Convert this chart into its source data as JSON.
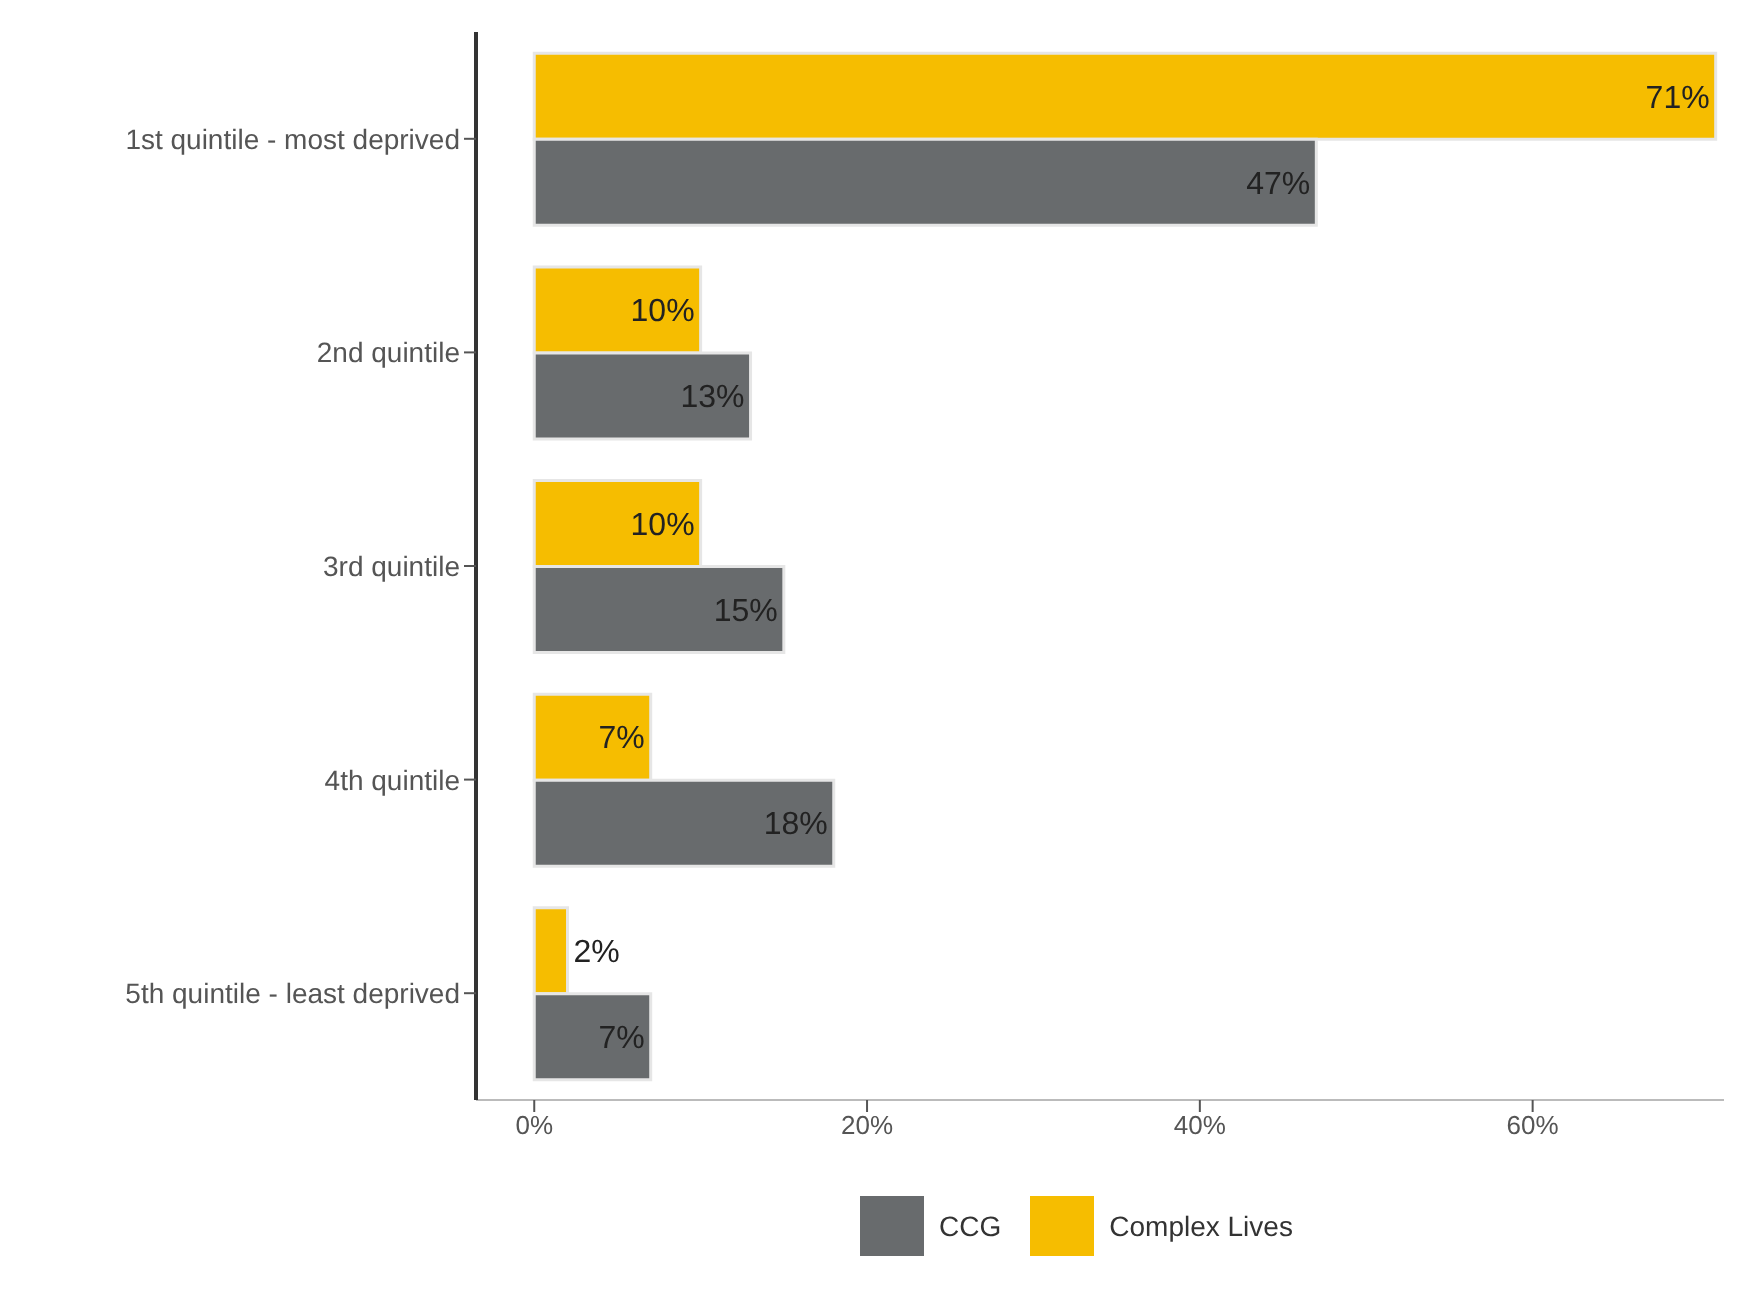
{
  "chart_data": {
    "type": "bar",
    "orientation": "horizontal",
    "categories": [
      "1st quintile - most deprived",
      "2nd quintile",
      "3rd quintile",
      "4th quintile",
      "5th quintile - least deprived"
    ],
    "series": [
      {
        "name": "CCG",
        "color": "#686b6d",
        "values": [
          47,
          13,
          15,
          18,
          7
        ],
        "value_labels": [
          "47%",
          "13%",
          "15%",
          "18%",
          "7%"
        ]
      },
      {
        "name": "Complex Lives",
        "color": "#f6bd00",
        "values": [
          71,
          10,
          10,
          7,
          2
        ],
        "value_labels": [
          "71%",
          "10%",
          "10%",
          "7%",
          "2%"
        ]
      }
    ],
    "xlim": [
      -3.5,
      71.5
    ],
    "xticks": [
      {
        "value": 0,
        "label": "0%"
      },
      {
        "value": 20,
        "label": "20%"
      },
      {
        "value": 40,
        "label": "40%"
      },
      {
        "value": 60,
        "label": "60%"
      }
    ],
    "grid": false,
    "legend": "bottom"
  }
}
